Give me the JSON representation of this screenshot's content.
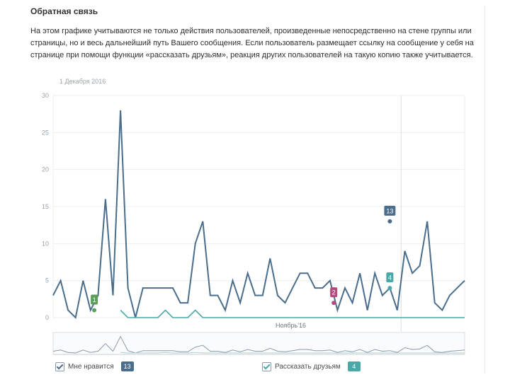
{
  "header": {
    "title": "Обратная связь",
    "description": "На этом графике учитываются не только действия пользователей, произведенные непосредственно на стене группы или страницы, но и весь дальнейший путь Вашего сообщения. Если пользователь размещает ссылку на сообщение у себя на странице при помощи функции «рассказать друзьям», реакция других пользователей на такую копию также учитывается."
  },
  "chart_data": {
    "type": "line",
    "date_label": "1 Декабря 2016",
    "month_label": "Ноябрь'16",
    "ylim": [
      0,
      30
    ],
    "yticks": [
      0,
      5,
      10,
      15,
      20,
      25,
      30
    ],
    "grid": true,
    "series": [
      {
        "name": "Мне нравится",
        "color": "#4a6d8c",
        "values": [
          3,
          5,
          1,
          0,
          5,
          1,
          3,
          16,
          3,
          28,
          4,
          0,
          4,
          4,
          4,
          4,
          4,
          2,
          2,
          10,
          13,
          3,
          3,
          1,
          5,
          2,
          6,
          3,
          3,
          8,
          3,
          2,
          4,
          6,
          6,
          4,
          4,
          5,
          1,
          4,
          2,
          6,
          1,
          6,
          3,
          4,
          1,
          9,
          6,
          7,
          13,
          2,
          1,
          3,
          4,
          5
        ],
        "total": "13"
      },
      {
        "name": "Рассказать друзьям",
        "color": "#4aa8a8",
        "values": [
          null,
          null,
          null,
          null,
          null,
          null,
          null,
          null,
          null,
          1,
          0,
          0,
          0,
          0,
          0,
          1,
          0,
          0,
          0,
          1,
          0,
          0,
          0,
          0,
          0,
          0,
          0,
          0,
          0,
          0,
          0,
          0,
          0,
          0,
          0,
          0,
          0,
          0,
          0,
          0,
          0,
          0,
          0,
          0,
          0,
          0,
          0,
          0,
          0,
          0,
          0,
          0,
          0,
          0,
          0,
          0
        ],
        "total": "4"
      }
    ],
    "annotations": [
      {
        "label": "1",
        "index": 5.5,
        "value": 1,
        "color": "#5a9e5a"
      },
      {
        "label": "2",
        "index": 37.5,
        "value": 2,
        "color": "#b44a7e"
      },
      {
        "label": "13",
        "index": 45,
        "value": 13,
        "color": "#4a6d8c"
      },
      {
        "label": "4",
        "index": 45,
        "value": 4,
        "color": "#4aa8a8"
      }
    ]
  },
  "legend": [
    {
      "label": "Мне нравится",
      "count": "13",
      "color": "#4a6d8c"
    },
    {
      "label": "Рассказать друзьям",
      "count": "4",
      "color": "#4aa8a8"
    }
  ]
}
